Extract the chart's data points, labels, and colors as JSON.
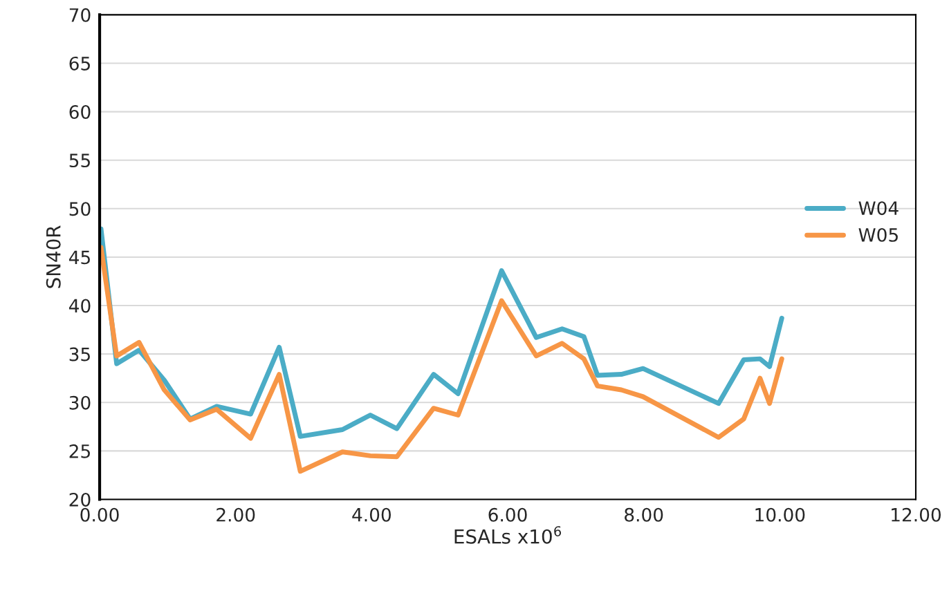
{
  "chart_data": {
    "type": "line",
    "xlabel": "ESALs x10$^{6}$",
    "ylabel": "SN40R",
    "x": [
      0.02,
      0.25,
      0.58,
      0.95,
      1.33,
      1.72,
      2.22,
      2.64,
      2.95,
      3.57,
      3.98,
      4.37,
      4.91,
      5.27,
      5.91,
      6.42,
      6.8,
      7.12,
      7.32,
      7.67,
      7.99,
      9.1,
      9.47,
      9.71,
      9.85,
      10.03
    ],
    "series": [
      {
        "name": "W04",
        "color": "#4bacc6",
        "values": [
          47.9,
          34.0,
          35.4,
          32.3,
          28.3,
          29.6,
          28.8,
          35.7,
          26.5,
          27.2,
          28.7,
          27.3,
          32.9,
          30.9,
          43.6,
          36.7,
          37.6,
          36.8,
          32.8,
          32.9,
          33.5,
          29.9,
          34.4,
          34.5,
          33.7,
          38.7
        ]
      },
      {
        "name": "W05",
        "color": "#f79646",
        "values": [
          46.0,
          34.8,
          36.2,
          31.3,
          28.2,
          29.3,
          26.3,
          32.9,
          22.9,
          24.9,
          24.5,
          24.4,
          29.4,
          28.7,
          40.5,
          34.8,
          36.1,
          34.5,
          31.7,
          31.3,
          30.6,
          26.4,
          28.3,
          32.5,
          29.9,
          34.5
        ]
      }
    ],
    "xlim": [
      0,
      12
    ],
    "xticks": [
      {
        "value": 0,
        "label": "0.00"
      },
      {
        "value": 2,
        "label": "2.00"
      },
      {
        "value": 4,
        "label": "4.00"
      },
      {
        "value": 6,
        "label": "6.00"
      },
      {
        "value": 8,
        "label": "8.00"
      },
      {
        "value": 10,
        "label": "10.00"
      },
      {
        "value": 12,
        "label": "12.00"
      }
    ],
    "ylim": [
      20,
      70
    ],
    "yticks": [
      20,
      25,
      30,
      35,
      40,
      45,
      50,
      55,
      60,
      65,
      70
    ],
    "grid": "y",
    "legend": "right",
    "marker": "none",
    "line_style": "solid"
  }
}
